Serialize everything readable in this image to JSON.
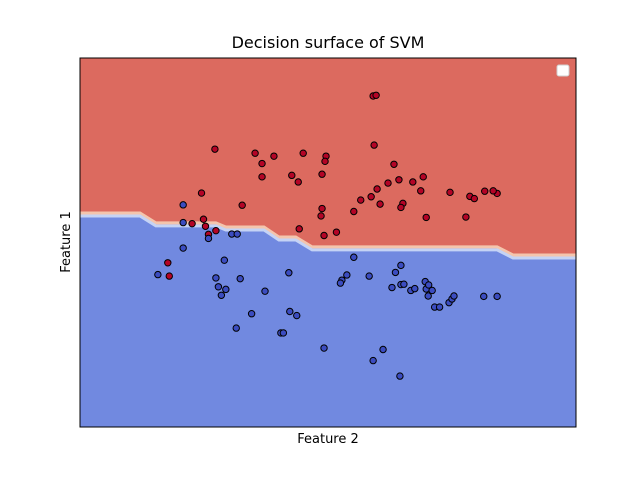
{
  "chart_data": {
    "type": "scatter",
    "title": "Decision surface of SVM",
    "xlabel": "Feature 2",
    "ylabel": "Feature 1",
    "ticks_visible": false,
    "grid": false,
    "legend": {
      "placement": "top-right",
      "entries": []
    },
    "xlim": [
      0,
      100
    ],
    "ylim": [
      0,
      100
    ],
    "colors": {
      "region_upper": "#dc6a5f",
      "region_lower": "#7189e0",
      "boundary_band": [
        "#f4c5ad",
        "#c5d3f5"
      ],
      "class_upper_point": "#b40426",
      "class_lower_point": "#3b4cc0",
      "point_edge": "#000000"
    },
    "decision_boundary": [
      [
        0,
        57.6
      ],
      [
        12.1,
        57.6
      ],
      [
        15.3,
        54.9
      ],
      [
        27.4,
        54.9
      ],
      [
        29.4,
        53.8
      ],
      [
        37.1,
        53.8
      ],
      [
        40.1,
        51.1
      ],
      [
        43.5,
        51.1
      ],
      [
        46.8,
        48.4
      ],
      [
        84.1,
        48.4
      ],
      [
        87.3,
        46.2
      ],
      [
        100,
        46.2
      ]
    ],
    "series": [
      {
        "points": [
          [
            59.1,
            89.7
          ],
          [
            59.7,
            89.9
          ],
          [
            27.2,
            75.3
          ],
          [
            35.3,
            74.2
          ],
          [
            39.1,
            73.4
          ],
          [
            45.0,
            74.2
          ],
          [
            49.6,
            73.4
          ],
          [
            49.4,
            72.0
          ],
          [
            59.3,
            76.4
          ],
          [
            63.3,
            71.2
          ],
          [
            36.7,
            71.4
          ],
          [
            36.7,
            67.8
          ],
          [
            48.8,
            68.5
          ],
          [
            42.7,
            68.2
          ],
          [
            44.0,
            66.4
          ],
          [
            62.1,
            66.1
          ],
          [
            64.3,
            67.0
          ],
          [
            67.1,
            66.4
          ],
          [
            69.2,
            67.8
          ],
          [
            59.9,
            64.5
          ],
          [
            74.6,
            63.6
          ],
          [
            81.6,
            63.9
          ],
          [
            84.1,
            63.3
          ],
          [
            83.3,
            64.0
          ],
          [
            24.5,
            63.4
          ],
          [
            56.6,
            61.5
          ],
          [
            58.7,
            62.4
          ],
          [
            60.5,
            60.4
          ],
          [
            65.1,
            60.6
          ],
          [
            68.7,
            64.0
          ],
          [
            78.6,
            62.5
          ],
          [
            79.5,
            61.9
          ],
          [
            32.7,
            60.1
          ],
          [
            48.8,
            59.2
          ],
          [
            55.2,
            58.4
          ],
          [
            64.7,
            59.5
          ],
          [
            48.6,
            57.2
          ],
          [
            69.8,
            56.8
          ],
          [
            77.8,
            56.9
          ],
          [
            24.9,
            56.3
          ],
          [
            22.6,
            55.1
          ],
          [
            44.2,
            53.7
          ],
          [
            25.3,
            54.4
          ],
          [
            27.4,
            53.2
          ],
          [
            25.9,
            52.2
          ],
          [
            49.2,
            51.9
          ],
          [
            51.7,
            52.8
          ],
          [
            17.7,
            44.5
          ],
          [
            18.0,
            40.9
          ]
        ]
      },
      {
        "points": [
          [
            20.8,
            60.2
          ],
          [
            20.8,
            55.4
          ],
          [
            20.8,
            48.5
          ],
          [
            15.7,
            41.3
          ],
          [
            25.9,
            51.1
          ],
          [
            30.6,
            52.3
          ],
          [
            31.7,
            52.3
          ],
          [
            29.1,
            45.2
          ],
          [
            27.4,
            40.4
          ],
          [
            32.3,
            40.2
          ],
          [
            27.9,
            38.0
          ],
          [
            29.4,
            37.3
          ],
          [
            28.5,
            35.7
          ],
          [
            37.3,
            36.8
          ],
          [
            42.1,
            41.8
          ],
          [
            34.6,
            30.7
          ],
          [
            31.5,
            26.8
          ],
          [
            42.3,
            31.3
          ],
          [
            43.7,
            30.2
          ],
          [
            40.5,
            25.5
          ],
          [
            41.0,
            25.5
          ],
          [
            55.2,
            46.0
          ],
          [
            53.8,
            41.2
          ],
          [
            52.8,
            39.8
          ],
          [
            52.5,
            39.0
          ],
          [
            58.3,
            40.9
          ],
          [
            63.6,
            41.9
          ],
          [
            64.7,
            43.8
          ],
          [
            62.9,
            37.8
          ],
          [
            64.7,
            38.6
          ],
          [
            65.3,
            38.7
          ],
          [
            66.7,
            37.0
          ],
          [
            67.5,
            37.5
          ],
          [
            69.6,
            39.4
          ],
          [
            69.8,
            37.4
          ],
          [
            70.3,
            38.5
          ],
          [
            71.0,
            37.0
          ],
          [
            70.2,
            35.5
          ],
          [
            71.5,
            32.5
          ],
          [
            72.5,
            32.5
          ],
          [
            74.4,
            33.7
          ],
          [
            75.0,
            34.7
          ],
          [
            75.4,
            35.5
          ],
          [
            81.4,
            35.4
          ],
          [
            84.1,
            35.4
          ],
          [
            49.2,
            21.4
          ],
          [
            59.1,
            18.0
          ],
          [
            61.1,
            21.0
          ],
          [
            64.5,
            13.8
          ]
        ]
      }
    ]
  }
}
